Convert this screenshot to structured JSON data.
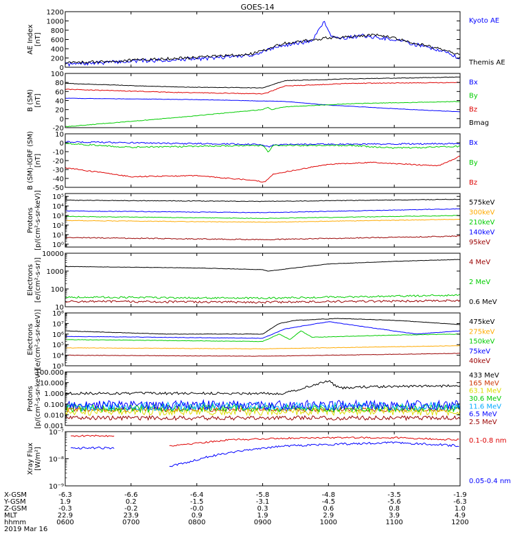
{
  "title": "GOES-14",
  "colors": {
    "black": "#000000",
    "blue": "#0000ff",
    "red": "#dd0000",
    "green": "#00cc00",
    "orange": "#ffaa00",
    "dark_red": "#990000",
    "brown_red": "#cc3300",
    "yellow": "#dddd00",
    "cyan": "#00aaff"
  },
  "chart_data": [
    {
      "type": "line",
      "id": "ae",
      "ylabel": [
        "AE Index",
        "[nT]"
      ],
      "ylim": [
        0,
        1200
      ],
      "scale": "linear",
      "yticks": [
        0,
        200,
        400,
        600,
        800,
        1000,
        1200
      ],
      "yticklabels": [
        "0",
        "200",
        "400",
        "600",
        "800",
        "1000",
        "1200"
      ],
      "series": [
        {
          "name": "Kyoto AE",
          "color": "#0000ff",
          "noise": 40,
          "x": [
            0,
            60,
            120,
            170,
            185,
            195,
            210,
            225,
            230,
            236,
            242,
            250,
            270,
            300,
            340,
            360
          ],
          "y": [
            60,
            130,
            180,
            260,
            380,
            450,
            520,
            560,
            780,
            1000,
            700,
            620,
            680,
            600,
            380,
            200
          ]
        },
        {
          "name": "Themis AE",
          "color": "#000000",
          "noise": 30,
          "x": [
            0,
            60,
            120,
            170,
            185,
            200,
            215,
            230,
            240,
            255,
            285,
            310,
            340,
            360
          ],
          "y": [
            90,
            150,
            210,
            290,
            400,
            520,
            560,
            600,
            640,
            650,
            700,
            580,
            400,
            280
          ]
        }
      ]
    },
    {
      "type": "line",
      "id": "bsm",
      "ylabel": [
        "B (SM)",
        "[nT]"
      ],
      "ylim": [
        -20,
        100
      ],
      "scale": "linear",
      "yticks": [
        -20,
        0,
        20,
        40,
        60,
        80,
        100
      ],
      "yticklabels": [
        "-20",
        "0",
        "20",
        "40",
        "60",
        "80",
        "100"
      ],
      "series": [
        {
          "name": "Bx",
          "color": "#0000ff",
          "noise": 0.4,
          "x": [
            0,
            120,
            200,
            240,
            300,
            360
          ],
          "y": [
            45,
            42,
            38,
            30,
            22,
            15
          ]
        },
        {
          "name": "By",
          "color": "#00cc00",
          "noise": 0.6,
          "x": [
            0,
            100,
            180,
            185,
            188,
            200,
            260,
            360
          ],
          "y": [
            -18,
            2,
            20,
            25,
            20,
            26,
            33,
            38
          ]
        },
        {
          "name": "Bz",
          "color": "#dd0000",
          "noise": 0.8,
          "x": [
            0,
            100,
            180,
            185,
            200,
            260,
            360
          ],
          "y": [
            65,
            58,
            55,
            58,
            72,
            78,
            80
          ]
        },
        {
          "name": "Bmag",
          "color": "#000000",
          "noise": 0.6,
          "x": [
            0,
            100,
            180,
            185,
            200,
            260,
            360
          ],
          "y": [
            78,
            70,
            68,
            72,
            84,
            88,
            92
          ]
        }
      ]
    },
    {
      "type": "line",
      "id": "bigrf",
      "ylabel": [
        "B (SM)-IGRF (SM)",
        "[nT]"
      ],
      "ylim": [
        -50,
        10
      ],
      "scale": "linear",
      "yticks": [
        -50,
        -40,
        -30,
        -20,
        -10,
        0,
        10
      ],
      "yticklabels": [
        "-50",
        "-40",
        "-30",
        "-20",
        "-10",
        "0",
        "10"
      ],
      "series": [
        {
          "name": "Bx",
          "color": "#0000ff",
          "noise": 0.8,
          "x": [
            0,
            180,
            186,
            190,
            360
          ],
          "y": [
            1,
            -2,
            -5,
            -2,
            -1
          ]
        },
        {
          "name": "By",
          "color": "#00cc00",
          "noise": 0.8,
          "x": [
            0,
            60,
            120,
            180,
            185,
            190,
            260,
            300,
            360
          ],
          "y": [
            -1,
            -5,
            -4,
            -3,
            -10,
            -3,
            -3,
            -6,
            -4
          ]
        },
        {
          "name": "Bz",
          "color": "#dd0000",
          "noise": 0.6,
          "x": [
            0,
            60,
            120,
            170,
            182,
            190,
            240,
            280,
            340,
            360
          ],
          "y": [
            -28,
            -38,
            -37,
            -42,
            -44,
            -35,
            -24,
            -22,
            -26,
            -15
          ]
        }
      ]
    },
    {
      "type": "line",
      "id": "protons_hi",
      "ylabel": [
        "Protons",
        "[p/(cm²-s-sr-keV)]"
      ],
      "ylim": [
        0.5,
        200000
      ],
      "scale": "log",
      "yticks": [
        1,
        10,
        100,
        1000,
        10000,
        100000
      ],
      "yticklabels": [
        "10⁰",
        "10¹",
        "10²",
        "10³",
        "10⁴",
        "10⁵"
      ],
      "series": [
        {
          "name": "575keV",
          "color": "#000000",
          "noise": 0.03,
          "x": [
            0,
            180,
            360
          ],
          "y": [
            40000,
            30000,
            50000
          ]
        },
        {
          "name": "300keV",
          "color": "#ffaa00",
          "noise": 0.03,
          "x": [
            0,
            180,
            360
          ],
          "y": [
            300,
            200,
            400
          ]
        },
        {
          "name": "210keV",
          "color": "#00cc00",
          "noise": 0.03,
          "x": [
            0,
            180,
            360
          ],
          "y": [
            800,
            500,
            1000
          ]
        },
        {
          "name": "140keV",
          "color": "#0000ff",
          "noise": 0.03,
          "x": [
            0,
            180,
            360
          ],
          "y": [
            3000,
            2000,
            5000
          ]
        },
        {
          "name": "95keV",
          "color": "#990000",
          "noise": 0.05,
          "x": [
            0,
            180,
            360
          ],
          "y": [
            5,
            3,
            7
          ]
        }
      ]
    },
    {
      "type": "line",
      "id": "electrons_hi",
      "ylabel": [
        "Electrons",
        "[e/(cm²-s-sr)]"
      ],
      "ylim": [
        10,
        10000
      ],
      "scale": "log",
      "yticks": [
        10,
        100,
        1000,
        10000
      ],
      "yticklabels": [
        "10",
        "100",
        "1000",
        "10000"
      ],
      "series": [
        {
          "name": "4 MeV",
          "color": "#990000",
          "noise": 0.06,
          "x": [
            0,
            180,
            360
          ],
          "y": [
            20,
            18,
            22
          ]
        },
        {
          "name": "2 MeV",
          "color": "#00cc00",
          "noise": 0.05,
          "x": [
            0,
            180,
            360
          ],
          "y": [
            35,
            30,
            45
          ]
        },
        {
          "name": "0.6 MeV",
          "color": "#000000",
          "noise": 0.01,
          "x": [
            0,
            120,
            180,
            185,
            240,
            300,
            360
          ],
          "y": [
            1800,
            1500,
            1200,
            1000,
            2500,
            3500,
            4500
          ]
        }
      ]
    },
    {
      "type": "line",
      "id": "electrons_lo",
      "ylabel": [
        "Electrons",
        "[e/(cm²-s-sr-keV)]"
      ],
      "ylim": [
        1000,
        100000000
      ],
      "scale": "log",
      "yticks": [
        1000,
        10000,
        100000,
        1000000,
        10000000,
        100000000
      ],
      "yticklabels": [
        "10³",
        "10⁴",
        "10⁵",
        "10⁶",
        "10⁷",
        "10⁸"
      ],
      "series": [
        {
          "name": "475keV",
          "color": "#000000",
          "noise": 0.02,
          "x": [
            0,
            90,
            180,
            195,
            210,
            250,
            300,
            360
          ],
          "y": [
            2000000,
            1000000,
            1000000,
            10000000,
            20000000,
            30000000,
            20000000,
            8000000
          ]
        },
        {
          "name": "275keV",
          "color": "#ffaa00",
          "noise": 0.02,
          "x": [
            0,
            180,
            360
          ],
          "y": [
            50000,
            40000,
            80000
          ]
        },
        {
          "name": "150keV",
          "color": "#00cc00",
          "noise": 0.02,
          "x": [
            0,
            180,
            195,
            205,
            215,
            225,
            300,
            360
          ],
          "y": [
            300000,
            200000,
            1000000,
            300000,
            2000000,
            500000,
            800000,
            1000000
          ]
        },
        {
          "name": "75keV",
          "color": "#0000ff",
          "noise": 0.02,
          "x": [
            0,
            180,
            200,
            240,
            320,
            360
          ],
          "y": [
            600000,
            400000,
            3000000,
            15000000,
            1000000,
            2000000
          ]
        },
        {
          "name": "40keV",
          "color": "#990000",
          "noise": 0.02,
          "x": [
            0,
            180,
            360
          ],
          "y": [
            10000,
            8000,
            15000
          ]
        }
      ]
    },
    {
      "type": "line",
      "id": "protons_lo",
      "ylabel": [
        "Protons",
        "[p/(cm²-s-sr-keV)]"
      ],
      "ylim": [
        0.001,
        100
      ],
      "scale": "log",
      "yticks": [
        0.001,
        0.01,
        0.1,
        1,
        10,
        100
      ],
      "yticklabels": [
        "0.001",
        "0.010",
        "0.100",
        "1.000",
        "10.000",
        "100.000"
      ],
      "series": [
        {
          "name": "433 MeV",
          "color": "#000000",
          "noise": 0.12,
          "x": [
            0,
            200,
            240,
            250,
            270,
            360
          ],
          "y": [
            1,
            1,
            15,
            3,
            4,
            5
          ]
        },
        {
          "name": "165 MeV",
          "color": "#cc3300",
          "noise": 0.2,
          "x": [
            0,
            360
          ],
          "y": [
            0.03,
            0.03
          ]
        },
        {
          "name": "63.1 MeV",
          "color": "#dddd00",
          "noise": 0.35,
          "x": [
            0,
            360
          ],
          "y": [
            0.02,
            0.02
          ]
        },
        {
          "name": "30.6 MeV",
          "color": "#00cc00",
          "noise": 0.35,
          "x": [
            0,
            360
          ],
          "y": [
            0.04,
            0.04
          ]
        },
        {
          "name": "11.6 MeV",
          "color": "#00aaff",
          "noise": 0.4,
          "x": [
            0,
            360
          ],
          "y": [
            0.06,
            0.06
          ]
        },
        {
          "name": "6.5 MeV",
          "color": "#0000ff",
          "noise": 0.45,
          "x": [
            0,
            360
          ],
          "y": [
            0.08,
            0.08
          ]
        },
        {
          "name": "2.5 MeV",
          "color": "#990000",
          "noise": 0.2,
          "x": [
            0,
            360
          ],
          "y": [
            0.005,
            0.005
          ]
        }
      ]
    },
    {
      "type": "line",
      "id": "xray",
      "ylabel": [
        "Xray Flux",
        "[W/m²]"
      ],
      "ylim": [
        1e-09,
        1e-07
      ],
      "scale": "log",
      "yticks": [
        1e-09,
        1e-08,
        1e-07
      ],
      "yticklabels": [
        "10⁻⁹",
        "10⁻⁸",
        "10⁻⁷"
      ],
      "series": [
        {
          "name": "0.1-0.8 nm",
          "color": "#dd0000",
          "noise": 0.03,
          "segments": [
            {
              "x": [
                5,
                25,
                45
              ],
              "y": [
                7e-08,
                7e-08,
                7e-08
              ]
            },
            {
              "x": [
                95,
                150,
                220,
                300,
                360
              ],
              "y": [
                3e-08,
                5e-08,
                6e-08,
                6e-08,
                5e-08
              ]
            }
          ]
        },
        {
          "name": "0.05-0.4 nm",
          "color": "#0000ff",
          "noise": 0.04,
          "segments": [
            {
              "x": [
                5,
                25,
                45
              ],
              "y": [
                2.5e-08,
                2.5e-08,
                2.5e-08
              ]
            },
            {
              "x": [
                95,
                130,
                160,
                200,
                300,
                360
              ],
              "y": [
                5e-09,
                1.2e-08,
                2e-08,
                3e-08,
                4e-08,
                3e-08
              ]
            }
          ]
        }
      ]
    }
  ],
  "x_axis": {
    "range": [
      0,
      360
    ],
    "ticks": [
      0,
      60,
      120,
      180,
      240,
      300,
      360
    ],
    "rows": [
      {
        "label": "X-GSM",
        "values": [
          "-6.3",
          "-6.6",
          "-6.4",
          "-5.8",
          "-4.8",
          "-3.5",
          "-1.9"
        ]
      },
      {
        "label": "Y-GSM",
        "values": [
          "1.9",
          "0.2",
          "-1.5",
          "-3.1",
          "-4.5",
          "-5.6",
          "-6.3"
        ]
      },
      {
        "label": "Z-GSM",
        "values": [
          "-0.3",
          "-0.2",
          "-0.0",
          "0.3",
          "0.6",
          "0.8",
          "1.0"
        ]
      },
      {
        "label": "MLT",
        "values": [
          "22.9",
          "23.9",
          "0.9",
          "1.9",
          "2.9",
          "3.9",
          "4.9"
        ]
      },
      {
        "label": "hhmm",
        "values": [
          "0600",
          "0700",
          "0800",
          "0900",
          "1000",
          "1100",
          "1200"
        ]
      }
    ],
    "date": "2019 Mar 16"
  }
}
